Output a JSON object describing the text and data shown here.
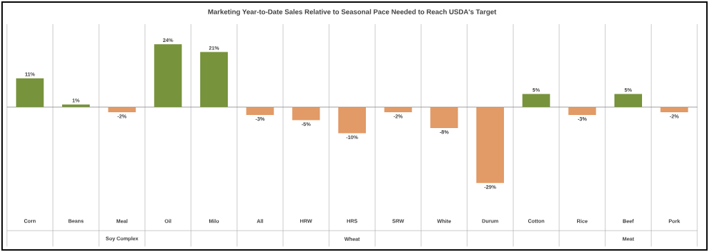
{
  "chart_data": {
    "type": "bar",
    "title": "Marketing Year-to-Date Sales Relative to Seasonal Pace Needed to Reach USDA's Target",
    "categories": [
      "Corn",
      "Beans",
      "Meal",
      "Oil",
      "Milo",
      "All",
      "HRW",
      "HRS",
      "SRW",
      "White",
      "Durum",
      "Cotton",
      "Rice",
      "Beef",
      "Pork"
    ],
    "values": [
      11,
      1,
      -2,
      24,
      21,
      -3,
      -5,
      -10,
      -2,
      -8,
      -29,
      5,
      -3,
      5,
      -2
    ],
    "colors": [
      "#77933c",
      "#77933c",
      "#e29a66",
      "#77933c",
      "#77933c",
      "#e29a66",
      "#e29a66",
      "#e29a66",
      "#e29a66",
      "#e29a66",
      "#e29a66",
      "#77933c",
      "#e29a66",
      "#77933c",
      "#e29a66"
    ],
    "value_labels": [
      "11%",
      "1%",
      "-2%",
      "24%",
      "21%",
      "-3%",
      "-5%",
      "-10%",
      "-2%",
      "-8%",
      "-29%",
      "5%",
      "-3%",
      "5%",
      "-2%"
    ],
    "annotations": [
      "Soy Complex",
      "Wheat",
      "Meat"
    ]
  }
}
